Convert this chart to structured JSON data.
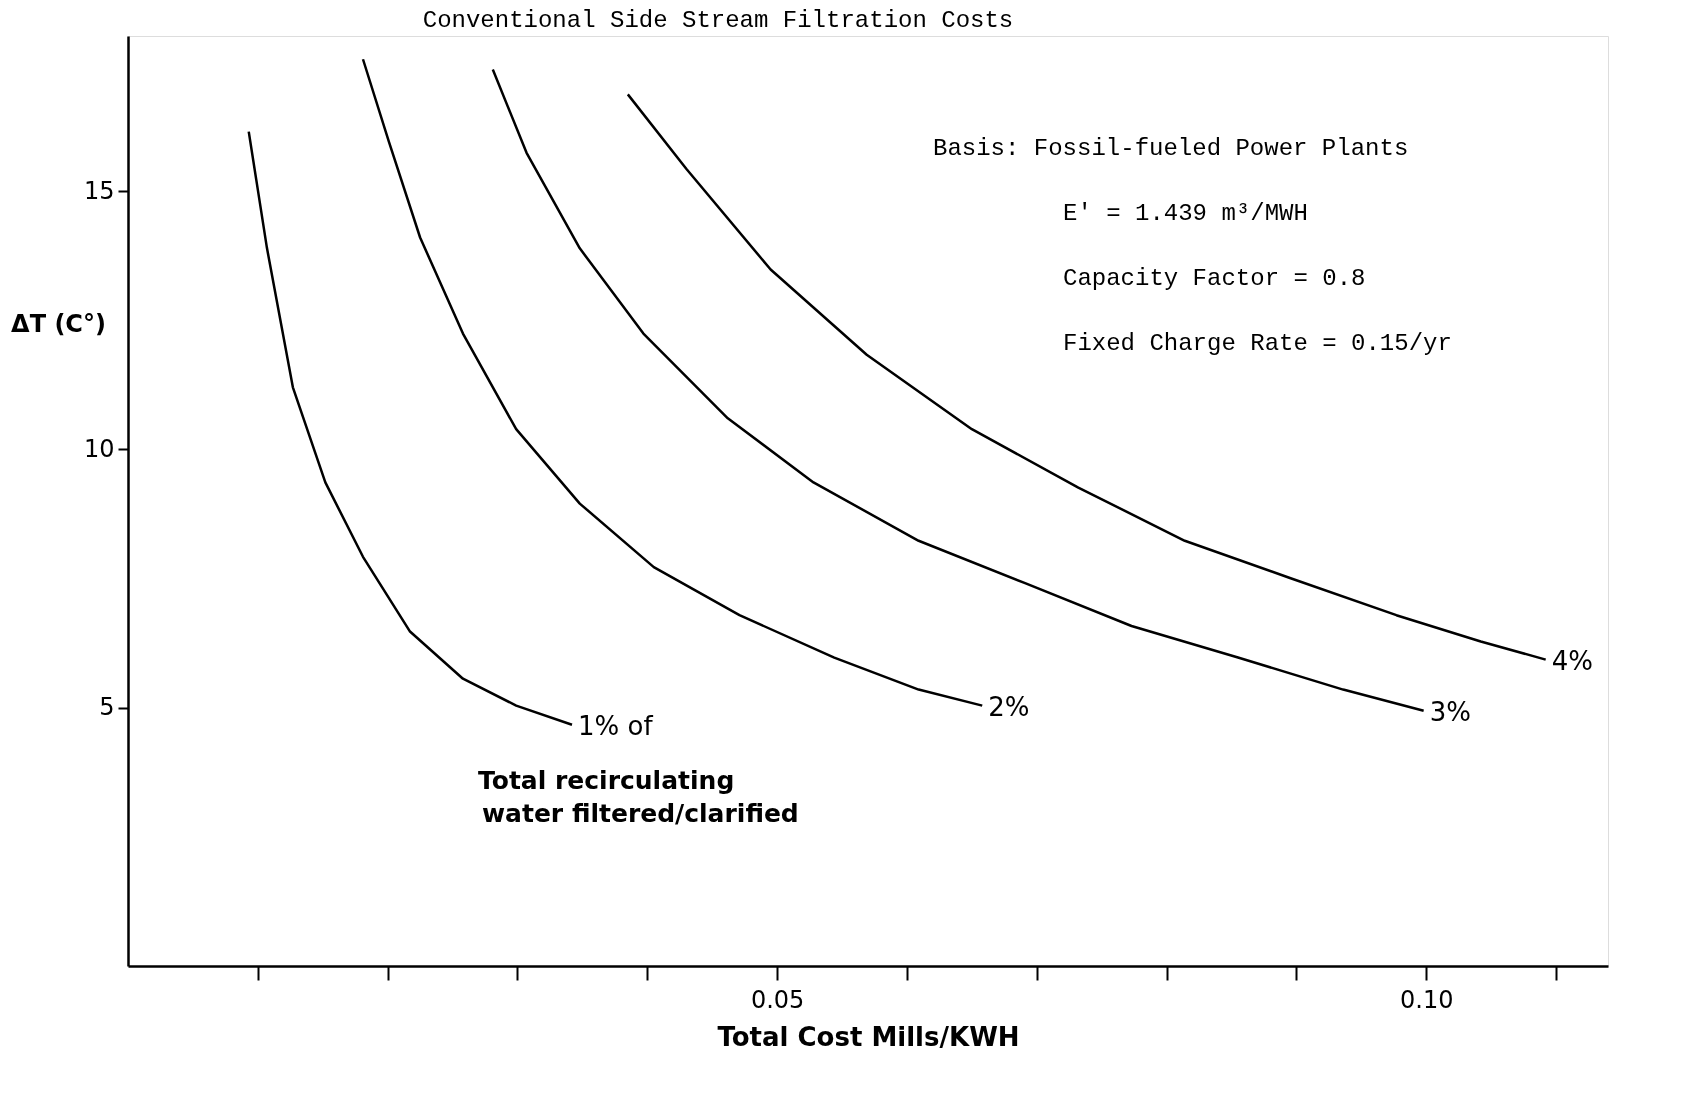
{
  "chart_data": {
    "type": "line",
    "title": "Conventional Side Stream Filtration Costs",
    "xlabel": "Total Cost  Mills/KWH",
    "ylabel": "ΔT (C°)",
    "xlim": [
      0,
      0.114
    ],
    "ylim": [
      0,
      18
    ],
    "xticks": [
      {
        "value": 0.01,
        "label": null
      },
      {
        "value": 0.02,
        "label": null
      },
      {
        "value": 0.03,
        "label": null
      },
      {
        "value": 0.04,
        "label": null
      },
      {
        "value": 0.05,
        "label": "0.05"
      },
      {
        "value": 0.06,
        "label": null
      },
      {
        "value": 0.07,
        "label": null
      },
      {
        "value": 0.08,
        "label": null
      },
      {
        "value": 0.09,
        "label": null
      },
      {
        "value": 0.1,
        "label": "0.10"
      },
      {
        "value": 0.11,
        "label": null
      }
    ],
    "yticks": [
      5,
      10,
      15
    ],
    "grid": false,
    "marker": "none",
    "line_style": "solid",
    "series": [
      {
        "name": "1% of",
        "color": "#000000",
        "x": [
          0.0093,
          0.0107,
          0.0127,
          0.0152,
          0.0181,
          0.0217,
          0.0258,
          0.0299,
          0.0342
        ],
        "values": [
          16.15,
          13.9,
          11.2,
          9.36,
          7.92,
          6.48,
          5.56,
          5.04,
          4.67
        ]
      },
      {
        "name": "2%",
        "color": "#000000",
        "x": [
          0.0181,
          0.0201,
          0.0225,
          0.0258,
          0.0299,
          0.0348,
          0.0405,
          0.0471,
          0.0544,
          0.0609,
          0.0658
        ],
        "values": [
          17.55,
          15.95,
          14.1,
          12.24,
          10.39,
          8.95,
          7.72,
          6.79,
          5.97,
          5.35,
          5.04
        ]
      },
      {
        "name": "3%",
        "color": "#000000",
        "x": [
          0.0281,
          0.0307,
          0.0348,
          0.0397,
          0.0462,
          0.0528,
          0.0609,
          0.0691,
          0.0773,
          0.0855,
          0.0936,
          0.0998
        ],
        "values": [
          17.35,
          15.74,
          13.89,
          12.24,
          10.6,
          9.36,
          8.23,
          7.41,
          6.58,
          5.97,
          5.35,
          4.94
        ]
      },
      {
        "name": "4%",
        "color": "#000000",
        "x": [
          0.0385,
          0.043,
          0.0495,
          0.0569,
          0.065,
          0.0732,
          0.0814,
          0.0895,
          0.0977,
          0.1042,
          0.1092
        ],
        "values": [
          16.87,
          15.43,
          13.48,
          11.83,
          10.39,
          9.26,
          8.23,
          7.51,
          6.79,
          6.28,
          5.93
        ]
      }
    ],
    "annotations": [
      "Basis:  Fossil-fueled Power Plants",
      "E' = 1.439 m³/MWH",
      "Capacity Factor = 0.8",
      "Fixed Charge Rate = 0.15/yr",
      "Total recirculating",
      "water filtered/clarified"
    ]
  }
}
